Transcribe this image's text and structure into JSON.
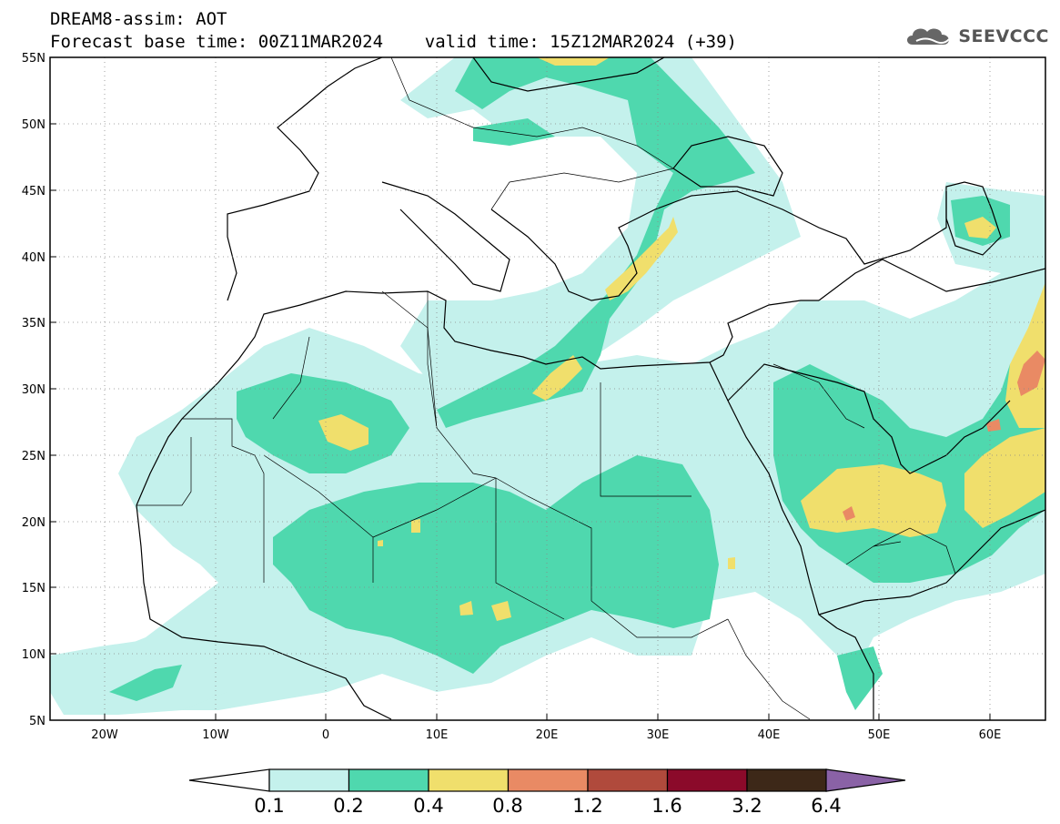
{
  "header": {
    "line1": "DREAM8-assim: AOT",
    "line2": "Forecast base time: 00Z11MAR2024    valid time: 15Z12MAR2024 (+39)"
  },
  "logo": {
    "text": "SEEVCCC",
    "icon": "cloud-logo-icon"
  },
  "map": {
    "lon_range": [
      -25,
      65
    ],
    "lat_range": [
      5,
      55
    ],
    "lon_ticks": [
      "20W",
      "10W",
      "0",
      "10E",
      "20E",
      "30E",
      "40E",
      "50E",
      "60E"
    ],
    "lat_ticks": [
      "55N",
      "50N",
      "45N",
      "40N",
      "35N",
      "30N",
      "25N",
      "20N",
      "15N",
      "10N",
      "5N"
    ],
    "grid": true
  },
  "colorbar": {
    "labels": [
      "0.1",
      "0.2",
      "0.4",
      "0.8",
      "1.2",
      "1.6",
      "3.2",
      "6.4"
    ],
    "colors": [
      "#c4f1ec",
      "#4fd8ae",
      "#f0df6c",
      "#e98a64",
      "#b04a3c",
      "#8b0a2a",
      "#3d2818",
      "#8a62a6"
    ],
    "low_color": "#ffffff",
    "land_outline_color": "#000000"
  }
}
